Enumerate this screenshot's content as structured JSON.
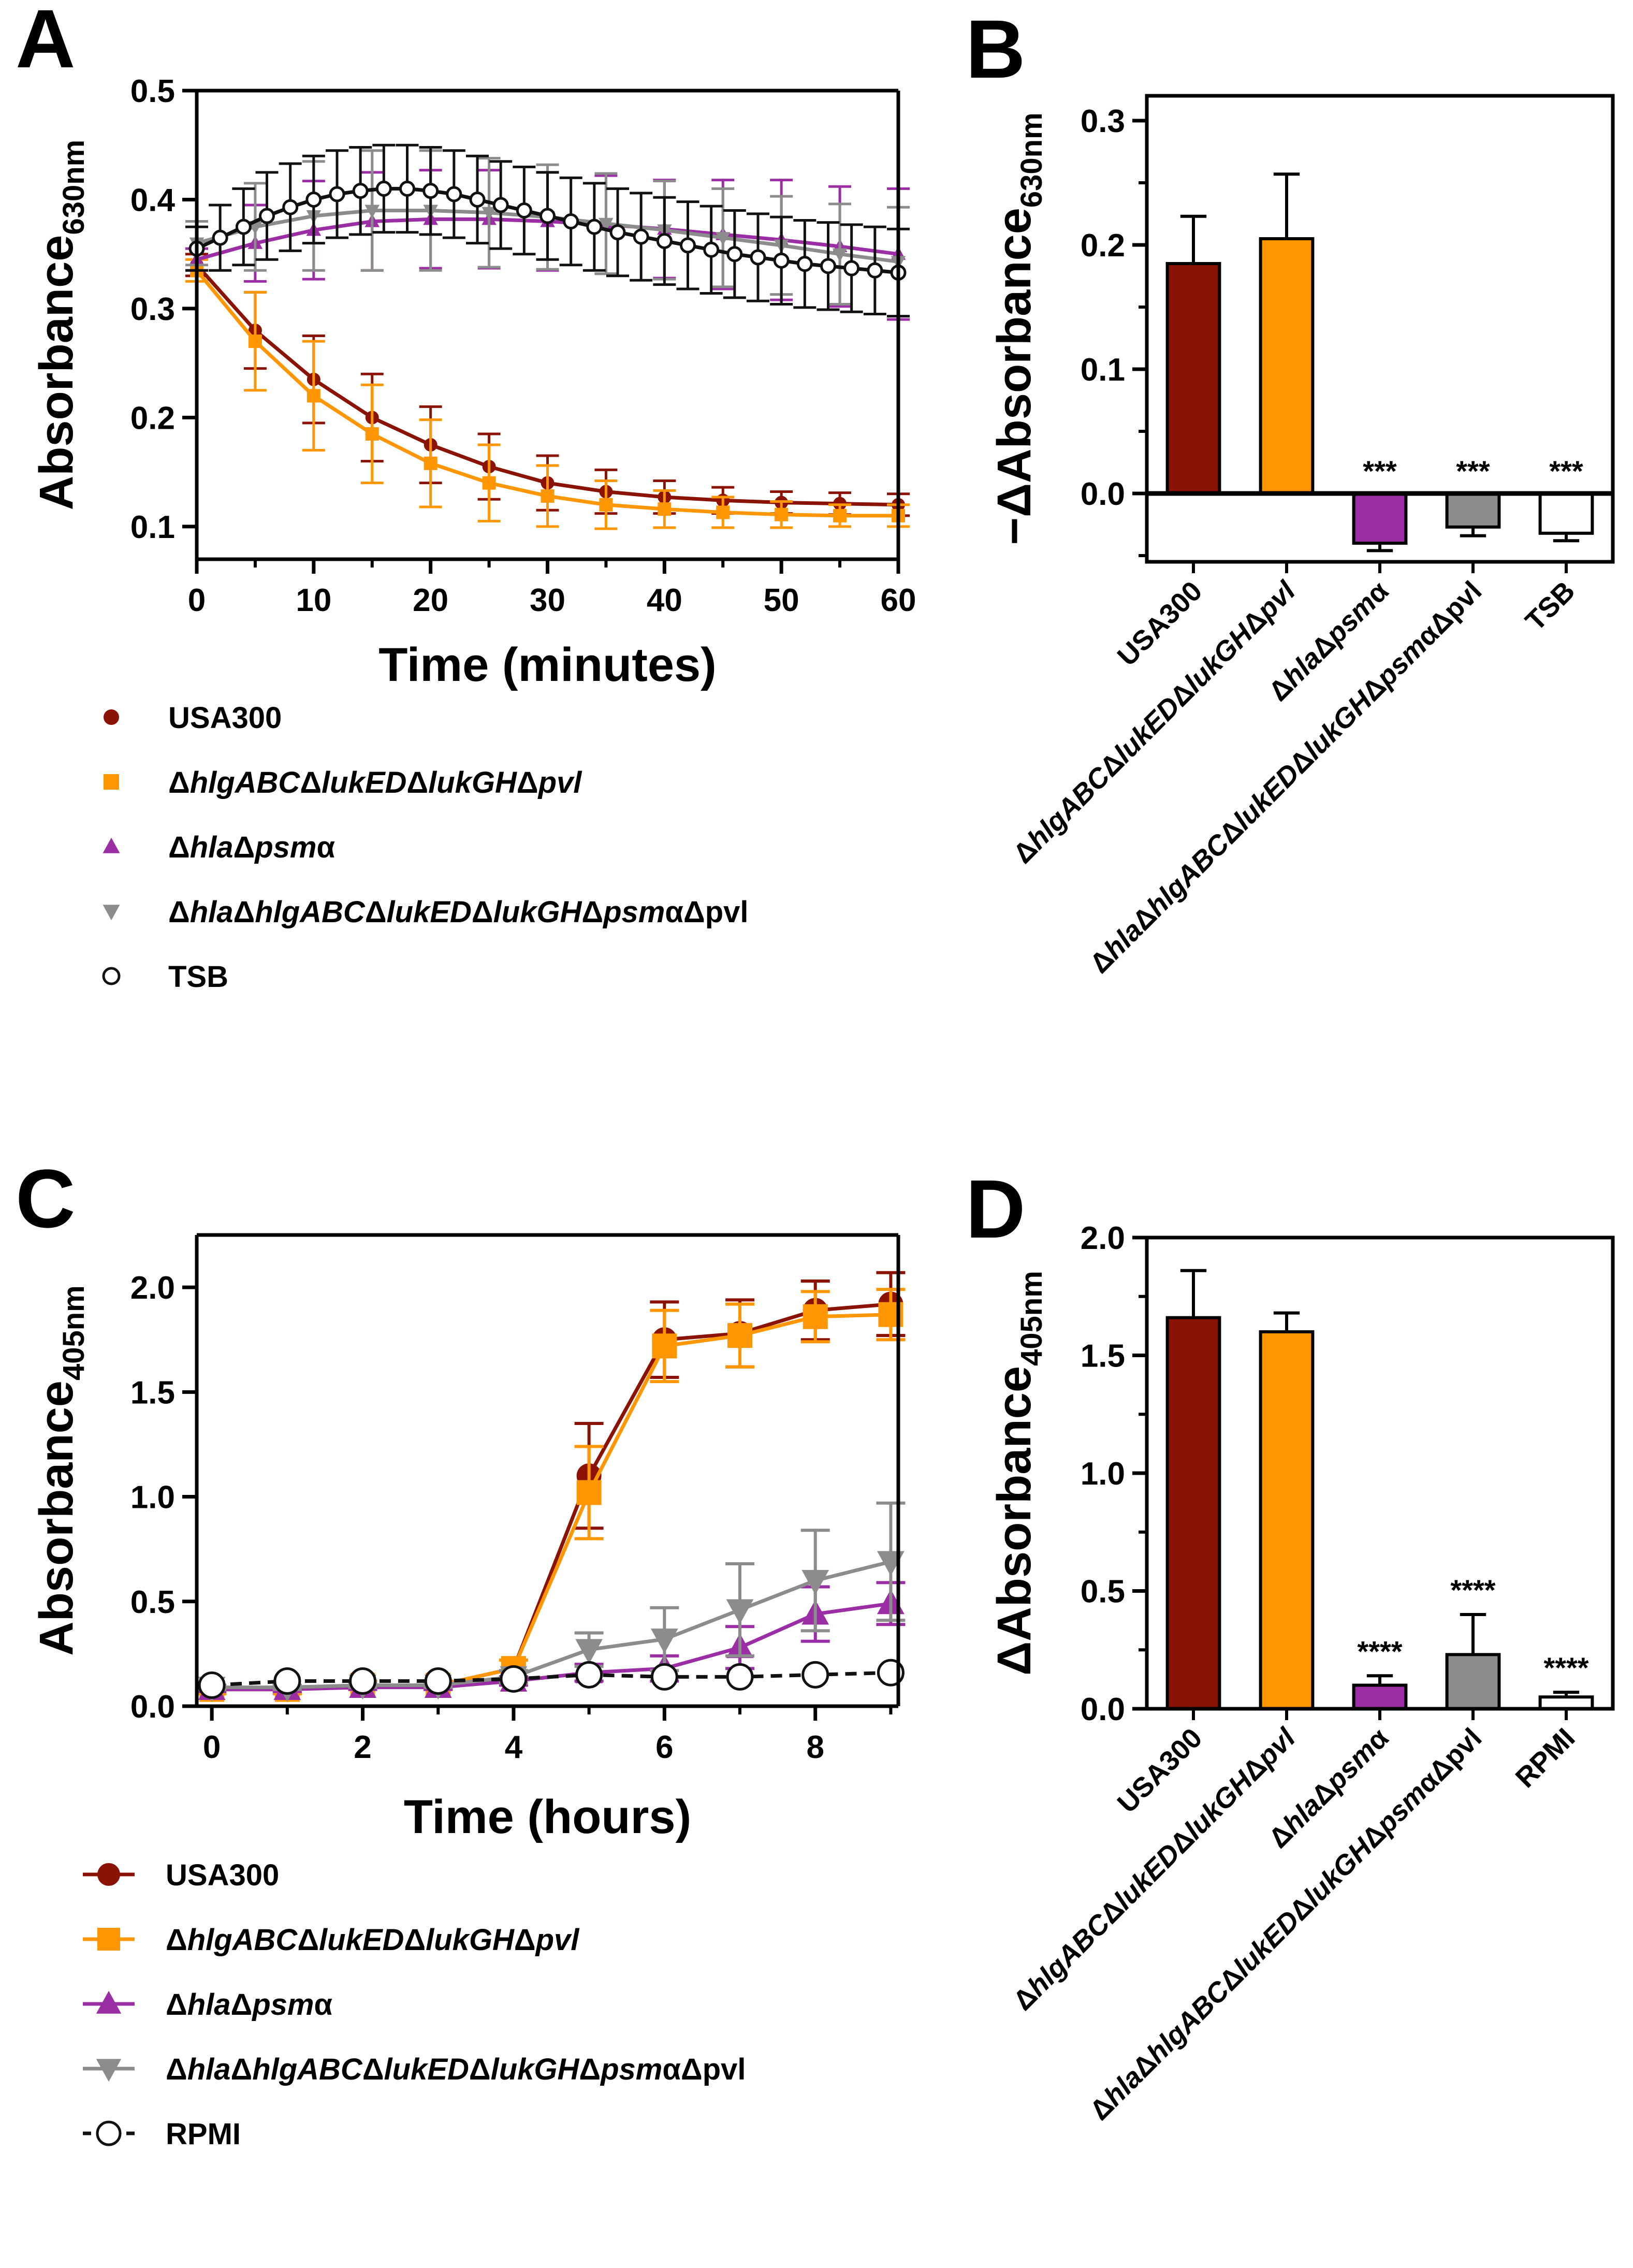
{
  "panels": {
    "A": {
      "label": "A",
      "ylabel_main": "Absorbance",
      "ylabel_sub": "630nm",
      "xlabel": "Time (minutes)",
      "legend": [
        "USA300",
        "ΔhlgABCΔlukEDΔlukGHΔpvl",
        "ΔhlaΔpsmα",
        "ΔhlaΔhlgABCΔlukEDΔlukGHΔpsmαΔpvl",
        "TSB"
      ]
    },
    "B": {
      "label": "B",
      "ylabel_prefix": "−ΔAbsorbance",
      "ylabel_sub": "630nm"
    },
    "C": {
      "label": "C",
      "ylabel_main": "Absorbance",
      "ylabel_sub": "405nm",
      "xlabel": "Time (hours)",
      "legend": [
        "USA300",
        "ΔhlgABCΔlukEDΔlukGHΔpvl",
        "ΔhlaΔpsmα",
        "ΔhlaΔhlgABCΔlukEDΔlukGHΔpsmαΔpvl",
        "RPMI"
      ]
    },
    "D": {
      "label": "D",
      "ylabel_prefix": "ΔAbsorbance",
      "ylabel_sub": "405nm"
    }
  },
  "colors": {
    "usa300": "#8b1305",
    "leuk": "#ff9602",
    "hla_psm": "#9b2ea5",
    "all_mut": "#8c8c8c",
    "control": "#111111"
  },
  "chart_data": [
    {
      "panel": "A",
      "type": "line",
      "title": "",
      "xlabel": "Time (minutes)",
      "ylabel": "Absorbance 630nm",
      "xlim": [
        0,
        60
      ],
      "ylim": [
        0.07,
        0.5
      ],
      "xticks": [
        0,
        10,
        20,
        30,
        40,
        50,
        60
      ],
      "yticks": [
        0.1,
        0.2,
        0.3,
        0.4,
        0.5
      ],
      "series": [
        {
          "name": "USA300",
          "color": "usa300",
          "marker": "circle",
          "x": [
            0,
            5,
            10,
            15,
            20,
            25,
            30,
            35,
            40,
            45,
            50,
            55,
            60
          ],
          "y": [
            0.34,
            0.28,
            0.235,
            0.2,
            0.175,
            0.155,
            0.14,
            0.132,
            0.127,
            0.124,
            0.122,
            0.121,
            0.12
          ],
          "err": [
            0.01,
            0.035,
            0.04,
            0.04,
            0.035,
            0.03,
            0.025,
            0.02,
            0.015,
            0.012,
            0.01,
            0.01,
            0.01
          ]
        },
        {
          "name": "ΔhlgABCΔlukEDΔlukGHΔpvl",
          "color": "leuk",
          "marker": "square",
          "x": [
            0,
            5,
            10,
            15,
            20,
            25,
            30,
            35,
            40,
            45,
            50,
            55,
            60
          ],
          "y": [
            0.335,
            0.27,
            0.22,
            0.185,
            0.158,
            0.14,
            0.128,
            0.12,
            0.116,
            0.113,
            0.111,
            0.11,
            0.11
          ],
          "err": [
            0.01,
            0.045,
            0.05,
            0.045,
            0.04,
            0.035,
            0.028,
            0.022,
            0.017,
            0.014,
            0.012,
            0.01,
            0.01
          ]
        },
        {
          "name": "ΔhlaΔpsmα",
          "color": "hla_psm",
          "marker": "triangle-up",
          "x": [
            0,
            5,
            10,
            15,
            20,
            25,
            30,
            35,
            40,
            45,
            50,
            55,
            60
          ],
          "y": [
            0.345,
            0.36,
            0.372,
            0.38,
            0.382,
            0.382,
            0.38,
            0.377,
            0.373,
            0.368,
            0.363,
            0.357,
            0.35
          ],
          "err": [
            0.01,
            0.035,
            0.045,
            0.045,
            0.045,
            0.045,
            0.045,
            0.045,
            0.045,
            0.05,
            0.055,
            0.055,
            0.06
          ]
        },
        {
          "name": "ΔhlaΔhlgABCΔlukEDΔlukGHΔpsmαΔpvl",
          "color": "all_mut",
          "marker": "triangle-down",
          "x": [
            0,
            5,
            10,
            15,
            20,
            25,
            30,
            35,
            40,
            45,
            50,
            55,
            60
          ],
          "y": [
            0.36,
            0.375,
            0.385,
            0.39,
            0.39,
            0.388,
            0.384,
            0.378,
            0.372,
            0.365,
            0.358,
            0.35,
            0.343
          ],
          "err": [
            0.02,
            0.04,
            0.05,
            0.055,
            0.055,
            0.05,
            0.048,
            0.046,
            0.045,
            0.045,
            0.045,
            0.046,
            0.05
          ]
        },
        {
          "name": "TSB",
          "color": "control",
          "marker": "open-circle",
          "x": [
            0,
            2,
            4,
            6,
            8,
            10,
            12,
            14,
            16,
            18,
            20,
            22,
            24,
            26,
            28,
            30,
            32,
            34,
            36,
            38,
            40,
            42,
            44,
            46,
            48,
            50,
            52,
            54,
            56,
            58,
            60
          ],
          "y": [
            0.355,
            0.365,
            0.375,
            0.385,
            0.393,
            0.4,
            0.405,
            0.408,
            0.41,
            0.41,
            0.408,
            0.405,
            0.4,
            0.395,
            0.39,
            0.385,
            0.38,
            0.375,
            0.37,
            0.366,
            0.362,
            0.358,
            0.354,
            0.35,
            0.347,
            0.344,
            0.341,
            0.339,
            0.337,
            0.335,
            0.333
          ],
          "err": [
            0.02,
            0.03,
            0.035,
            0.04,
            0.04,
            0.04,
            0.04,
            0.04,
            0.04,
            0.04,
            0.04,
            0.04,
            0.04,
            0.04,
            0.04,
            0.04,
            0.04,
            0.04,
            0.04,
            0.04,
            0.04,
            0.04,
            0.04,
            0.04,
            0.04,
            0.04,
            0.04,
            0.04,
            0.04,
            0.04,
            0.04
          ]
        }
      ]
    },
    {
      "panel": "B",
      "type": "bar",
      "title": "",
      "ylabel": "−ΔAbsorbance 630nm",
      "ylim": [
        -0.055,
        0.32
      ],
      "yticks": [
        0.0,
        0.1,
        0.2,
        0.3
      ],
      "ytick_labels": [
        "0.0",
        "0.1",
        "0.2",
        "0.3"
      ],
      "categories": [
        "USA300",
        "ΔhlgABCΔlukEDΔlukGHΔpvl",
        "ΔhlaΔpsmα",
        "ΔhlaΔhlgABCΔlukEDΔlukGHΔpsmαΔpvl",
        "TSB"
      ],
      "values": [
        0.185,
        0.205,
        -0.04,
        -0.027,
        -0.032
      ],
      "errors": [
        0.038,
        0.052,
        0.006,
        0.007,
        0.006
      ],
      "colors": [
        "usa300",
        "leuk",
        "hla_psm",
        "all_mut",
        "#ffffff"
      ],
      "significance": [
        "",
        "",
        "***",
        "***",
        "***"
      ]
    },
    {
      "panel": "C",
      "type": "line",
      "title": "",
      "xlabel": "Time (hours)",
      "ylabel": "Absorbance 405nm",
      "xlim": [
        -0.2,
        9.1
      ],
      "ylim": [
        0,
        2.25
      ],
      "xticks": [
        0,
        2,
        4,
        6,
        8
      ],
      "yticks": [
        0.0,
        0.5,
        1.0,
        1.5,
        2.0
      ],
      "ytick_labels": [
        "0.0",
        "0.5",
        "1.0",
        "1.5",
        "2.0"
      ],
      "series": [
        {
          "name": "USA300",
          "color": "usa300",
          "marker": "circle",
          "dashed": false,
          "x": [
            0,
            1,
            2,
            3,
            4,
            5,
            6,
            7,
            8,
            9
          ],
          "y": [
            0.08,
            0.08,
            0.1,
            0.1,
            0.18,
            1.1,
            1.75,
            1.78,
            1.89,
            1.92
          ],
          "err": [
            0.02,
            0.02,
            0.02,
            0.02,
            0.04,
            0.25,
            0.18,
            0.16,
            0.14,
            0.15
          ]
        },
        {
          "name": "ΔhlgABCΔlukEDΔlukGHΔpvl",
          "color": "leuk",
          "marker": "square",
          "dashed": false,
          "x": [
            0,
            1,
            2,
            3,
            4,
            5,
            6,
            7,
            8,
            9
          ],
          "y": [
            0.08,
            0.08,
            0.1,
            0.1,
            0.18,
            1.02,
            1.72,
            1.77,
            1.86,
            1.87
          ],
          "err": [
            0.02,
            0.02,
            0.02,
            0.02,
            0.04,
            0.22,
            0.17,
            0.15,
            0.12,
            0.12
          ]
        },
        {
          "name": "ΔhlaΔpsmα",
          "color": "hla_psm",
          "marker": "triangle-up",
          "dashed": false,
          "x": [
            0,
            1,
            2,
            3,
            4,
            5,
            6,
            7,
            8,
            9
          ],
          "y": [
            0.08,
            0.08,
            0.09,
            0.09,
            0.12,
            0.16,
            0.18,
            0.28,
            0.44,
            0.49
          ],
          "err": [
            0.01,
            0.01,
            0.01,
            0.01,
            0.02,
            0.04,
            0.06,
            0.1,
            0.13,
            0.1
          ]
        },
        {
          "name": "ΔhlaΔhlgABCΔlukEDΔlukGHΔpsmαΔpvl",
          "color": "all_mut",
          "marker": "triangle-down",
          "dashed": false,
          "x": [
            0,
            1,
            2,
            3,
            4,
            5,
            6,
            7,
            8,
            9
          ],
          "y": [
            0.09,
            0.09,
            0.1,
            0.1,
            0.14,
            0.27,
            0.32,
            0.46,
            0.6,
            0.69
          ],
          "err": [
            0.01,
            0.01,
            0.01,
            0.01,
            0.03,
            0.08,
            0.15,
            0.22,
            0.24,
            0.28
          ]
        },
        {
          "name": "RPMI",
          "color": "control",
          "marker": "open-circle",
          "dashed": true,
          "x": [
            0,
            1,
            2,
            3,
            4,
            5,
            6,
            7,
            8,
            9
          ],
          "y": [
            0.1,
            0.12,
            0.12,
            0.12,
            0.13,
            0.15,
            0.14,
            0.14,
            0.15,
            0.16
          ],
          "err": [
            0,
            0,
            0,
            0,
            0,
            0,
            0,
            0,
            0,
            0
          ]
        }
      ]
    },
    {
      "panel": "D",
      "type": "bar",
      "title": "",
      "ylabel": "ΔAbsorbance 405nm",
      "ylim": [
        0,
        2.0
      ],
      "yticks": [
        0.0,
        0.5,
        1.0,
        1.5,
        2.0
      ],
      "ytick_labels": [
        "0.0",
        "0.5",
        "1.0",
        "1.5",
        "2.0"
      ],
      "categories": [
        "USA300",
        "ΔhlgABCΔlukEDΔlukGHΔpvl",
        "ΔhlaΔpsmα",
        "ΔhlaΔhlgABCΔlukEDΔlukGHΔpsmαΔpvl",
        "RPMI"
      ],
      "values": [
        1.66,
        1.6,
        0.1,
        0.23,
        0.05
      ],
      "errors": [
        0.2,
        0.08,
        0.04,
        0.17,
        0.02
      ],
      "colors": [
        "usa300",
        "leuk",
        "hla_psm",
        "all_mut",
        "#ffffff"
      ],
      "significance": [
        "",
        "",
        "****",
        "****",
        "****"
      ]
    }
  ]
}
